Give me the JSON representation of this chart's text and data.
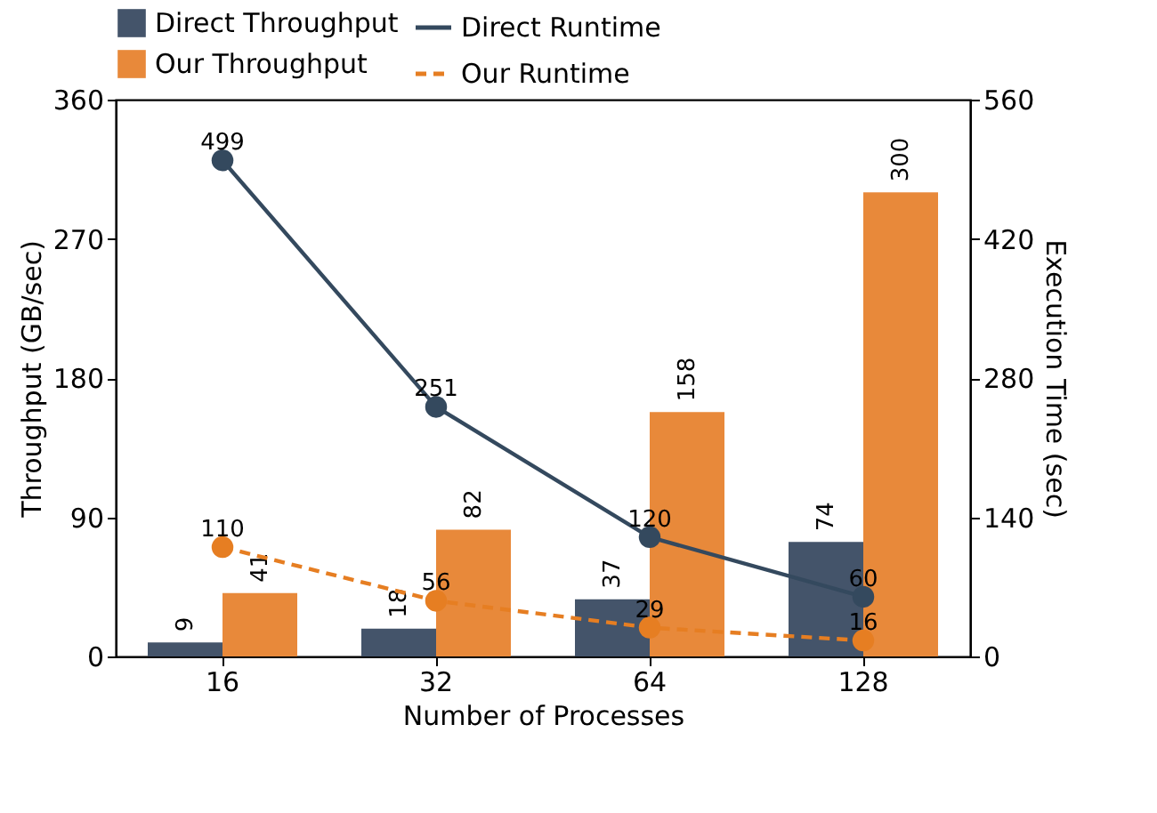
{
  "chart_data": {
    "type": "bar",
    "xlabel": "Number of Processes",
    "ylabel": "Throughput (GB/sec)",
    "y2label": "Execution Time (sec)",
    "categories": [
      "16",
      "32",
      "64",
      "128"
    ],
    "series": [
      {
        "name": "Direct Throughput",
        "color": "#44546a",
        "values": [
          9,
          18,
          37,
          74
        ]
      },
      {
        "name": "Our Throughput",
        "color": "#e8893a",
        "values": [
          41,
          82,
          158,
          300
        ]
      },
      {
        "name": "Direct Runtime",
        "type": "line",
        "axis": "y2",
        "color": "#34495e",
        "line_style": "solid",
        "values": [
          499,
          251,
          120,
          60
        ]
      },
      {
        "name": "Our Runtime",
        "type": "line",
        "axis": "y2",
        "color": "#e67e22",
        "line_style": "dashed",
        "values": [
          110,
          56,
          29,
          16
        ]
      }
    ],
    "ylim": [
      0,
      360
    ],
    "yticks": [
      0,
      90,
      180,
      270,
      360
    ],
    "y2lim": [
      0,
      560
    ],
    "y2ticks": [
      0,
      140,
      280,
      420,
      560
    ],
    "data_labels": true,
    "marker": "circle",
    "grid": false,
    "legend": "top"
  }
}
